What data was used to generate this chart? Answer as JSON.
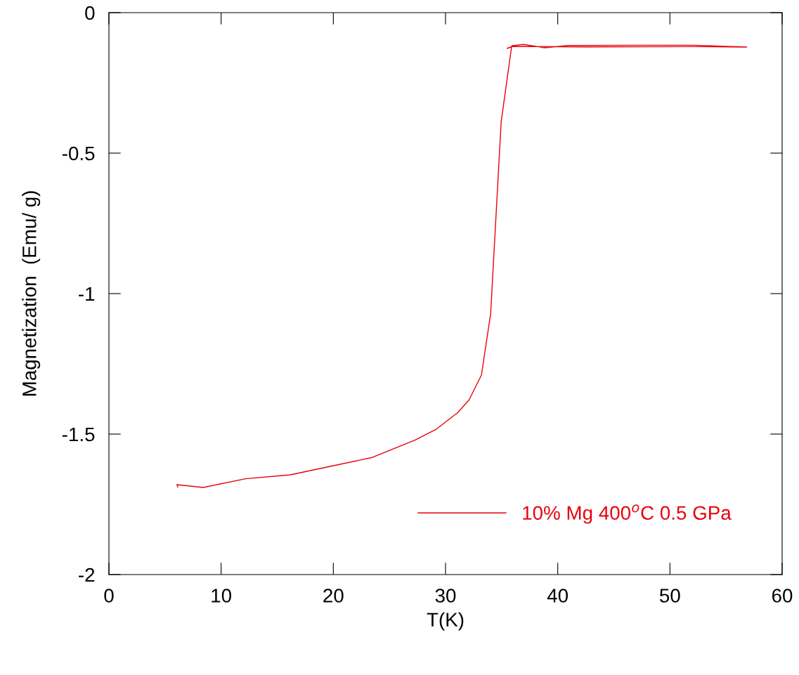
{
  "chart_data": {
    "type": "line",
    "xlabel": "T(K)",
    "ylabel": "Magnetization  (Emu/ g)",
    "xlim": [
      0,
      60
    ],
    "xticks": [
      0,
      10,
      20,
      30,
      40,
      50,
      60
    ],
    "ylim": [
      -2,
      0
    ],
    "yticks": [
      -2,
      -1.5,
      -1,
      -0.5,
      0
    ],
    "grid": false,
    "legend": "bottom right",
    "marker": "none",
    "line_style": "solid",
    "series": [
      {
        "name": "10% Mg 400$^{o}$C 0.5 GPa",
        "color": "#e8000b",
        "x": [
          6.15,
          6.05,
          8.4,
          12.17,
          16.17,
          19.72,
          23.48,
          27.24,
          29.2,
          31.1,
          32.1,
          33.2,
          34.02,
          34.96,
          35.9,
          36.94,
          38.82,
          41.0,
          47.3,
          52.1,
          56.84,
          52.1,
          42.3,
          36.0,
          35.5
        ],
        "values": [
          -1.688,
          -1.68,
          -1.69,
          -1.659,
          -1.645,
          -1.615,
          -1.583,
          -1.522,
          -1.482,
          -1.423,
          -1.378,
          -1.29,
          -1.072,
          -0.388,
          -0.118,
          -0.113,
          -0.125,
          -0.117,
          -0.116,
          -0.116,
          -0.1225,
          -0.121,
          -0.122,
          -0.12,
          -0.127
        ]
      }
    ]
  }
}
